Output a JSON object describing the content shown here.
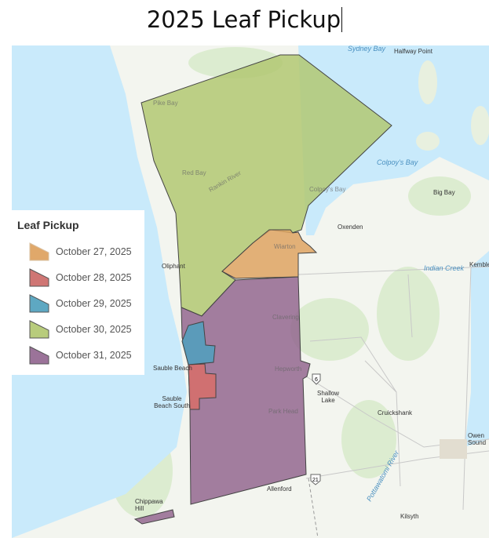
{
  "title": "2025 Leaf Pickup",
  "legend": {
    "title": "Leaf Pickup",
    "items": [
      {
        "label": "October 27, 2025",
        "color": "#e0a86a"
      },
      {
        "label": "October 28, 2025",
        "color": "#cf7674"
      },
      {
        "label": "October 29, 2025",
        "color": "#5ea8c2"
      },
      {
        "label": "October 30, 2025",
        "color": "#b8cc7c"
      },
      {
        "label": "October 31, 2025",
        "color": "#9b7399"
      }
    ]
  },
  "map": {
    "colors": {
      "water": "#c9eafb",
      "land": "#f3f5ef",
      "vegetation": "#dcecd0"
    },
    "places": {
      "sydney_bay": "Sydney Bay",
      "halfway_point": "Halfway Point",
      "colpoys_bay_water": "Colpoy's Bay",
      "big_bay": "Big Bay",
      "oxenden": "Oxenden",
      "kemble": "Kemble",
      "pike_bay": "Pike Bay",
      "red_bay": "Red Bay",
      "rankin_river": "Rankin River",
      "colpoys_bay_town": "Colpoy's Bay",
      "wiarton": "Wiarton",
      "oliphant": "Oliphant",
      "clavering": "Clavering",
      "hepworth": "Hepworth",
      "sauble_beach": "Sauble Beach",
      "sauble_beach_south": "Sauble Beach South",
      "park_head": "Park Head",
      "shallow_lake": "Shallow Lake",
      "cruickshank": "Cruickshank",
      "owen_sound": "Owen Sound",
      "allenford": "Allenford",
      "chippawa_hill": "Chippawa Hill",
      "kilsyth": "Kilsyth",
      "pottawatomi_river": "Pottawatomi River",
      "indian_creek": "Indian Creek"
    },
    "highways": [
      "6",
      "21"
    ]
  }
}
